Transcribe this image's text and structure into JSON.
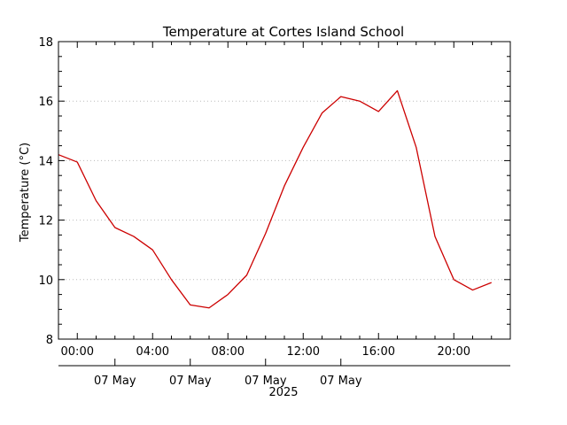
{
  "chart_data": {
    "type": "line",
    "title": "Temperature at Cortes Island School",
    "ylabel": "Temperature (°C)",
    "xlabel": "",
    "ylim": [
      8,
      18
    ],
    "yticks": [
      8,
      10,
      12,
      14,
      16,
      18
    ],
    "ytick_labels": [
      "8",
      "10",
      "12",
      "14",
      "16",
      "18"
    ],
    "xlim": [
      -1,
      23
    ],
    "xtick_hours": [
      0,
      4,
      8,
      12,
      16,
      20
    ],
    "xtick_labels": [
      "00:00",
      "04:00",
      "08:00",
      "12:00",
      "16:00",
      "20:00"
    ],
    "date_labels": [
      "07 May",
      "07 May",
      "07 May",
      "07 May"
    ],
    "year_label": "2025",
    "grid": "horizontal dotted",
    "series": [
      {
        "color": "#cc0000",
        "x": [
          -1,
          0,
          1,
          2,
          3,
          4,
          5,
          6,
          7,
          8,
          9,
          10,
          11,
          12,
          13,
          14,
          15,
          16,
          17,
          18,
          19,
          20,
          21,
          22
        ],
        "y": [
          14.2,
          13.95,
          12.65,
          11.75,
          11.45,
          11.0,
          10.0,
          9.15,
          9.05,
          9.5,
          10.15,
          11.55,
          13.15,
          14.45,
          15.6,
          16.15,
          16.0,
          15.65,
          16.35,
          14.45,
          11.45,
          10.0,
          9.65,
          9.9
        ]
      }
    ]
  }
}
